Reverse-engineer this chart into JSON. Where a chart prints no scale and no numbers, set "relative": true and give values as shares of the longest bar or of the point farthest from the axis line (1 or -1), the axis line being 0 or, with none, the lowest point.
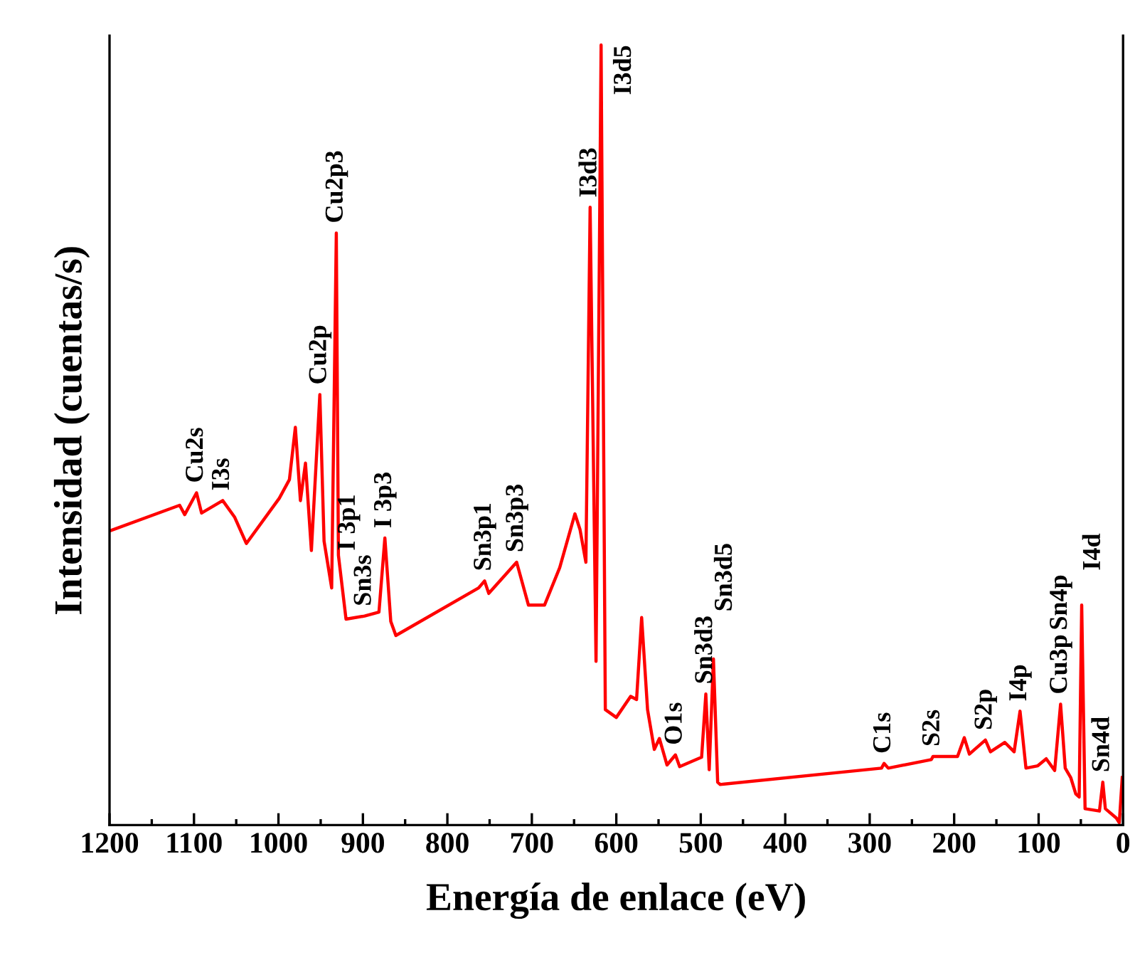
{
  "chart_data": {
    "type": "line",
    "relative": true,
    "xlabel": "Energía de enlace (eV)",
    "ylabel": "Intensidad (cuentas/s)",
    "xlim": [
      1200,
      0
    ],
    "xticks": [
      1200,
      1100,
      1000,
      900,
      800,
      700,
      600,
      500,
      400,
      300,
      200,
      100,
      0
    ],
    "grid": false,
    "legend": false,
    "marker": "none",
    "line_style": "solid",
    "series": [
      {
        "color": "#ff0000",
        "x": [
          1200,
          1117,
          1111,
          1097,
          1091,
          1066,
          1052,
          1038,
          999,
          987,
          980,
          974,
          968,
          961,
          951,
          946,
          937,
          931.5,
          929,
          920,
          898,
          881,
          874,
          867,
          861,
          763,
          756,
          751,
          718,
          704,
          685,
          667,
          649,
          643,
          636,
          631,
          624,
          618,
          613,
          600,
          583,
          576,
          570,
          563,
          555,
          549,
          540,
          530,
          525,
          499,
          494,
          490,
          485,
          480,
          477,
          286,
          283,
          278,
          227,
          225,
          196,
          188,
          182,
          163,
          157,
          140,
          129,
          122,
          115,
          101,
          91,
          81,
          74,
          68.5,
          62,
          56,
          52,
          49,
          45,
          28,
          24,
          21,
          8,
          4.5,
          1
        ],
        "values": [
          0.377,
          0.41,
          0.398,
          0.426,
          0.4,
          0.416,
          0.395,
          0.361,
          0.419,
          0.443,
          0.51,
          0.416,
          0.464,
          0.352,
          0.552,
          0.364,
          0.304,
          0.759,
          0.346,
          0.264,
          0.268,
          0.273,
          0.368,
          0.261,
          0.243,
          0.304,
          0.313,
          0.297,
          0.337,
          0.282,
          0.282,
          0.33,
          0.399,
          0.379,
          0.337,
          0.792,
          0.21,
          1.0,
          0.148,
          0.138,
          0.165,
          0.161,
          0.266,
          0.148,
          0.097,
          0.111,
          0.077,
          0.09,
          0.075,
          0.087,
          0.168,
          0.071,
          0.213,
          0.055,
          0.052,
          0.073,
          0.079,
          0.073,
          0.084,
          0.088,
          0.088,
          0.112,
          0.091,
          0.109,
          0.094,
          0.106,
          0.094,
          0.146,
          0.073,
          0.076,
          0.085,
          0.07,
          0.155,
          0.073,
          0.061,
          0.04,
          0.036,
          0.282,
          0.021,
          0.018,
          0.055,
          0.021,
          0.009,
          0.003,
          0.061
        ]
      }
    ],
    "annotations": [
      {
        "text": "Cu2s",
        "x": 1097,
        "y": 0.426
      },
      {
        "text": "I3s",
        "x": 1066,
        "y": 0.416
      },
      {
        "text": "Cu2p",
        "x": 951,
        "y": 0.552
      },
      {
        "text": "Cu2p3",
        "x": 931.5,
        "y": 0.759
      },
      {
        "text": "Sn3s",
        "x": 898,
        "y": 0.268
      },
      {
        "text": "I 3p1",
        "x": 917,
        "y": 0.264
      },
      {
        "text": "I 3p3",
        "x": 874,
        "y": 0.368
      },
      {
        "text": "Sn3p1",
        "x": 756,
        "y": 0.313
      },
      {
        "text": "Sn3p3",
        "x": 718,
        "y": 0.337
      },
      {
        "text": "I3d3",
        "x": 631,
        "y": 0.792
      },
      {
        "text": "I3d5",
        "x": 618,
        "y": 1.0
      },
      {
        "text": "O1s",
        "x": 530,
        "y": 0.09
      },
      {
        "text": "Sn3d3",
        "x": 494,
        "y": 0.168
      },
      {
        "text": "Sn3d5",
        "x": 485,
        "y": 0.213
      },
      {
        "text": "C1s",
        "x": 283,
        "y": 0.079
      },
      {
        "text": "S2s",
        "x": 225,
        "y": 0.088
      },
      {
        "text": "S2p",
        "x": 163,
        "y": 0.109
      },
      {
        "text": "I4p",
        "x": 122,
        "y": 0.146
      },
      {
        "text": "Cu3p",
        "x": 74,
        "y": 0.155
      },
      "Sn4p",
      {
        "text": "I4d",
        "x": 49,
        "y": 0.282
      },
      {
        "text": "Sn4d",
        "x": 24,
        "y": 0.055
      }
    ]
  }
}
